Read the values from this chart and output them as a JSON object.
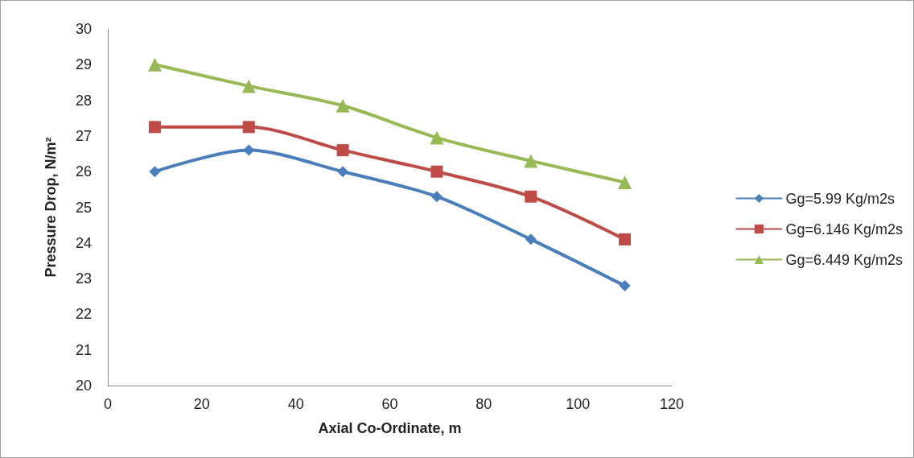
{
  "chart_data": {
    "type": "line",
    "xlabel": "Axial Co-Ordinate, m",
    "ylabel": "Pressure Drop, N/m²",
    "x": [
      10,
      30,
      50,
      70,
      90,
      110
    ],
    "series": [
      {
        "name": "Gg=5.99 Kg/m2s",
        "color": "#4a7ebb",
        "marker": "diamond",
        "values": [
          26.0,
          26.6,
          26.0,
          25.3,
          24.1,
          22.8
        ]
      },
      {
        "name": "Gg=6.146 Kg/m2s",
        "color": "#be4b48",
        "marker": "square",
        "values": [
          27.25,
          27.25,
          26.6,
          26.0,
          25.3,
          24.1
        ]
      },
      {
        "name": "Gg=6.449 Kg/m2s",
        "color": "#98b954",
        "marker": "triangle",
        "values": [
          29.0,
          28.4,
          27.85,
          26.95,
          26.3,
          25.7
        ]
      }
    ],
    "xlim": [
      0,
      120
    ],
    "xticks": [
      0,
      20,
      40,
      60,
      80,
      100,
      120
    ],
    "ylim": [
      20,
      30
    ],
    "yticks": [
      20,
      21,
      22,
      23,
      24,
      25,
      26,
      27,
      28,
      29,
      30
    ],
    "grid": false,
    "legend": "right",
    "line_style": "solid"
  }
}
